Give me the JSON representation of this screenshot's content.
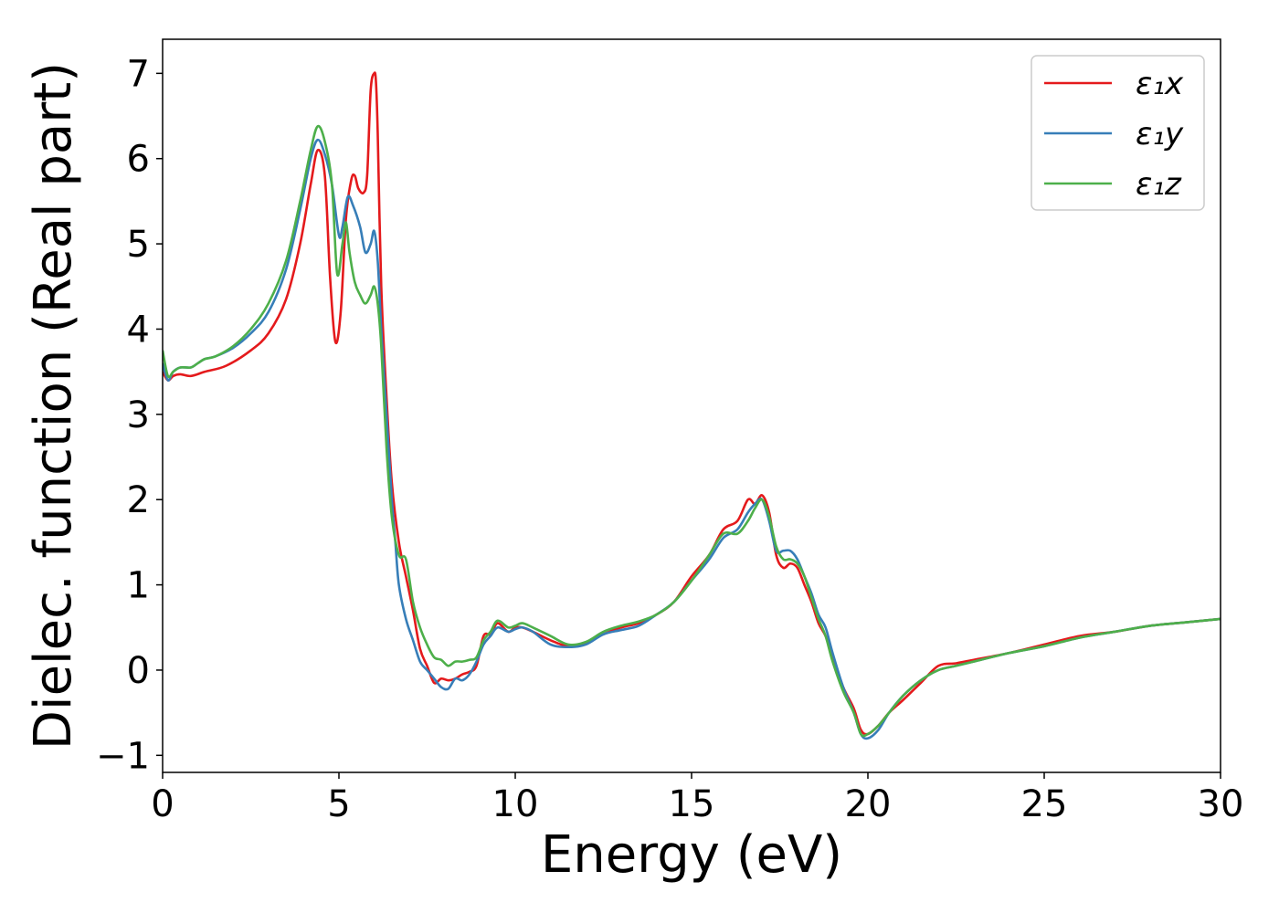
{
  "chart_data": {
    "type": "line",
    "xlabel": "Energy (eV)",
    "ylabel": "Dielec. function (Real part)",
    "xlim": [
      0,
      30
    ],
    "ylim": [
      -1.2,
      7.4
    ],
    "xticks": [
      0,
      5,
      10,
      15,
      20,
      25,
      30
    ],
    "yticks": [
      -1,
      0,
      1,
      2,
      3,
      4,
      5,
      6,
      7
    ],
    "xtick_labels": [
      "0",
      "5",
      "10",
      "15",
      "20",
      "25",
      "30"
    ],
    "ytick_labels": [
      "−1",
      "0",
      "1",
      "2",
      "3",
      "4",
      "5",
      "6",
      "7"
    ],
    "grid": false,
    "legend_position": "top-right",
    "series": [
      {
        "name": "ε₁x",
        "color": "#e41a1c",
        "x": [
          0,
          0.15,
          0.3,
          0.5,
          0.8,
          1.2,
          1.8,
          2.5,
          3.0,
          3.5,
          3.9,
          4.2,
          4.4,
          4.6,
          4.75,
          4.9,
          5.05,
          5.2,
          5.35,
          5.45,
          5.55,
          5.7,
          5.8,
          5.9,
          6.0,
          6.05,
          6.1,
          6.2,
          6.35,
          6.5,
          6.7,
          6.9,
          7.1,
          7.3,
          7.5,
          7.7,
          7.9,
          8.1,
          8.3,
          8.5,
          8.7,
          8.9,
          9.1,
          9.3,
          9.5,
          9.8,
          10.0,
          10.2,
          10.5,
          11.0,
          11.5,
          12.0,
          12.5,
          13.0,
          13.5,
          14.0,
          14.5,
          15.0,
          15.5,
          15.9,
          16.3,
          16.6,
          16.8,
          17.0,
          17.2,
          17.4,
          17.6,
          17.8,
          18.0,
          18.2,
          18.4,
          18.6,
          18.8,
          19.0,
          19.3,
          19.6,
          19.8,
          20.0,
          20.3,
          20.6,
          21.0,
          21.5,
          22.0,
          22.5,
          23.0,
          24.0,
          25.0,
          26.0,
          27.0,
          28.0,
          29.0,
          30.0
        ],
        "y": [
          3.5,
          3.4,
          3.45,
          3.47,
          3.45,
          3.5,
          3.57,
          3.75,
          3.95,
          4.35,
          5.0,
          5.7,
          6.1,
          5.8,
          4.6,
          3.85,
          4.2,
          5.3,
          5.75,
          5.8,
          5.65,
          5.6,
          5.8,
          6.8,
          7.0,
          6.9,
          6.3,
          4.5,
          3.2,
          2.2,
          1.5,
          1.1,
          0.7,
          0.25,
          0.05,
          -0.15,
          -0.1,
          -0.12,
          -0.1,
          -0.05,
          -0.02,
          0.05,
          0.4,
          0.42,
          0.55,
          0.45,
          0.5,
          0.5,
          0.45,
          0.35,
          0.28,
          0.32,
          0.42,
          0.5,
          0.55,
          0.65,
          0.8,
          1.1,
          1.35,
          1.65,
          1.75,
          2.0,
          1.95,
          2.05,
          1.85,
          1.35,
          1.2,
          1.25,
          1.2,
          1.0,
          0.8,
          0.55,
          0.4,
          0.15,
          -0.2,
          -0.45,
          -0.7,
          -0.75,
          -0.65,
          -0.5,
          -0.35,
          -0.15,
          0.05,
          0.08,
          0.12,
          0.2,
          0.3,
          0.4,
          0.45,
          0.52,
          0.56,
          0.6
        ]
      },
      {
        "name": "ε₁y",
        "color": "#377eb8",
        "x": [
          0,
          0.15,
          0.3,
          0.5,
          0.8,
          1.0,
          1.2,
          1.5,
          2.0,
          2.5,
          3.0,
          3.5,
          3.9,
          4.2,
          4.4,
          4.6,
          4.8,
          5.0,
          5.1,
          5.25,
          5.4,
          5.6,
          5.75,
          5.9,
          6.0,
          6.1,
          6.2,
          6.35,
          6.5,
          6.6,
          6.7,
          6.9,
          7.1,
          7.3,
          7.5,
          7.7,
          7.9,
          8.1,
          8.3,
          8.5,
          8.7,
          8.9,
          9.1,
          9.3,
          9.5,
          9.8,
          10.0,
          10.2,
          10.5,
          11.0,
          11.5,
          12.0,
          12.5,
          13.0,
          13.5,
          14.0,
          14.5,
          15.0,
          15.5,
          15.9,
          16.3,
          16.6,
          16.8,
          17.0,
          17.2,
          17.4,
          17.6,
          17.8,
          18.0,
          18.2,
          18.4,
          18.6,
          18.8,
          19.0,
          19.3,
          19.6,
          19.8,
          20.0,
          20.3,
          20.6,
          21.0,
          21.5,
          22.0,
          22.5,
          23.0,
          24.0,
          25.0,
          26.0,
          27.0,
          28.0,
          29.0,
          30.0
        ],
        "y": [
          3.6,
          3.4,
          3.5,
          3.55,
          3.55,
          3.6,
          3.65,
          3.68,
          3.78,
          3.95,
          4.2,
          4.7,
          5.4,
          6.0,
          6.22,
          6.05,
          5.7,
          5.1,
          5.2,
          5.55,
          5.45,
          5.2,
          4.9,
          5.0,
          5.15,
          4.8,
          4.0,
          3.0,
          2.0,
          1.5,
          1.0,
          0.6,
          0.35,
          0.1,
          0.0,
          -0.1,
          -0.2,
          -0.22,
          -0.1,
          -0.12,
          -0.05,
          0.1,
          0.3,
          0.4,
          0.5,
          0.45,
          0.48,
          0.5,
          0.45,
          0.3,
          0.27,
          0.3,
          0.42,
          0.47,
          0.52,
          0.65,
          0.8,
          1.05,
          1.3,
          1.55,
          1.65,
          1.85,
          1.95,
          2.0,
          1.75,
          1.4,
          1.4,
          1.4,
          1.3,
          1.1,
          0.9,
          0.65,
          0.5,
          0.2,
          -0.2,
          -0.5,
          -0.75,
          -0.8,
          -0.7,
          -0.5,
          -0.3,
          -0.12,
          0.0,
          0.05,
          0.1,
          0.2,
          0.28,
          0.38,
          0.45,
          0.52,
          0.56,
          0.6
        ]
      },
      {
        "name": "ε₁z",
        "color": "#4daf4a",
        "x": [
          0,
          0.15,
          0.3,
          0.5,
          0.8,
          1.0,
          1.2,
          1.5,
          2.0,
          2.5,
          3.0,
          3.5,
          3.9,
          4.2,
          4.4,
          4.6,
          4.8,
          4.95,
          5.1,
          5.2,
          5.3,
          5.45,
          5.6,
          5.75,
          5.9,
          6.0,
          6.1,
          6.2,
          6.35,
          6.5,
          6.7,
          6.9,
          7.1,
          7.3,
          7.5,
          7.7,
          7.9,
          8.1,
          8.3,
          8.5,
          8.7,
          8.9,
          9.1,
          9.3,
          9.5,
          9.8,
          10.0,
          10.2,
          10.5,
          11.0,
          11.5,
          12.0,
          12.5,
          13.0,
          13.5,
          14.0,
          14.5,
          15.0,
          15.5,
          15.9,
          16.3,
          16.6,
          16.8,
          17.0,
          17.2,
          17.4,
          17.6,
          17.8,
          18.0,
          18.2,
          18.4,
          18.6,
          18.8,
          19.0,
          19.3,
          19.6,
          19.8,
          20.0,
          20.3,
          20.6,
          21.0,
          21.5,
          22.0,
          22.5,
          23.0,
          24.0,
          25.0,
          26.0,
          27.0,
          28.0,
          29.0,
          30.0
        ],
        "y": [
          3.75,
          3.45,
          3.5,
          3.55,
          3.55,
          3.6,
          3.65,
          3.68,
          3.8,
          4.0,
          4.3,
          4.8,
          5.5,
          6.1,
          6.38,
          6.2,
          5.7,
          4.65,
          5.0,
          5.25,
          4.9,
          4.55,
          4.4,
          4.3,
          4.4,
          4.5,
          4.3,
          3.8,
          2.6,
          1.8,
          1.35,
          1.3,
          0.8,
          0.5,
          0.3,
          0.15,
          0.12,
          0.05,
          0.1,
          0.1,
          0.12,
          0.15,
          0.35,
          0.45,
          0.58,
          0.5,
          0.52,
          0.55,
          0.5,
          0.4,
          0.3,
          0.33,
          0.45,
          0.52,
          0.57,
          0.65,
          0.8,
          1.05,
          1.35,
          1.6,
          1.6,
          1.75,
          1.9,
          2.0,
          1.8,
          1.45,
          1.3,
          1.3,
          1.25,
          1.1,
          0.85,
          0.6,
          0.4,
          0.1,
          -0.25,
          -0.5,
          -0.75,
          -0.75,
          -0.65,
          -0.5,
          -0.3,
          -0.12,
          0.0,
          0.05,
          0.1,
          0.2,
          0.28,
          0.38,
          0.45,
          0.52,
          0.56,
          0.6
        ]
      }
    ]
  }
}
